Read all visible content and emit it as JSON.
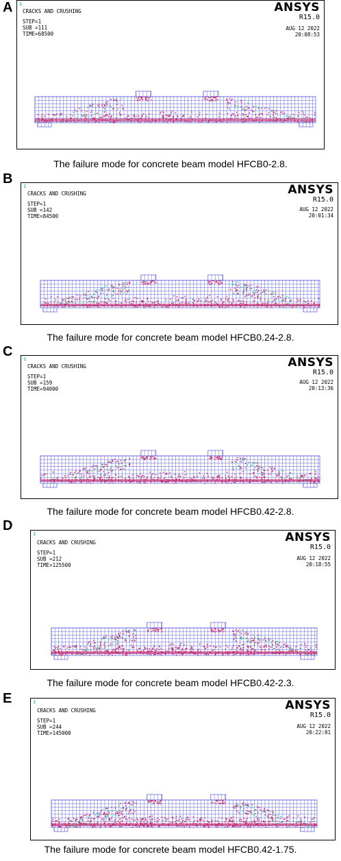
{
  "panels": [
    {
      "letter": "A",
      "header": "CRACKS AND CRUSHING",
      "step": "STEP=1",
      "sub": "SUB =111",
      "time": "TIME=68500",
      "brand": "ANSYS",
      "version": "R15.0",
      "date": "AUG 12 2022",
      "clock": "20:08:53",
      "caption": "The failure mode for concrete beam model HFCB0-2.8."
    },
    {
      "letter": "B",
      "header": "CRACKS AND CRUSHING",
      "step": "STEP=1",
      "sub": "SUB =142",
      "time": "TIME=84500",
      "brand": "ANSYS",
      "version": "R15.0",
      "date": "AUG 12 2022",
      "clock": "20:01:34",
      "caption": "The failure mode for concrete beam model HFCB0.24-2.8."
    },
    {
      "letter": "C",
      "header": "CRACKS AND CRUSHING",
      "step": "STEP=1",
      "sub": "SUB =159",
      "time": "TIME=94000",
      "brand": "ANSYS",
      "version": "R15.0",
      "date": "AUG 12 2022",
      "clock": "20:13:36",
      "caption": "The failure mode for concrete beam model HFCB0.42-2.8."
    },
    {
      "letter": "D",
      "header": "CRACKS AND CRUSHING",
      "step": "STEP=1",
      "sub": "SUB =212",
      "time": "TIME=125500",
      "brand": "ANSYS",
      "version": "R15.0",
      "date": "AUG 12 2022",
      "clock": "20:18:55",
      "caption": "The failure mode for concrete beam model HFCB0.42-2.3."
    },
    {
      "letter": "E",
      "header": "CRACKS AND CRUSHING",
      "step": "STEP=1",
      "sub": "SUB =244",
      "time": "TIME=145000",
      "brand": "ANSYS",
      "version": "R15.0",
      "date": "AUG 12 2022",
      "clock": "20:22:01",
      "caption": "The failure mode for concrete beam model HFCB0.42-1.75."
    }
  ],
  "colors": {
    "mesh": "#3a3ad8",
    "crack": "#c0105a",
    "crush_cyan": "#20c8c8",
    "crush_green": "#30b040"
  }
}
